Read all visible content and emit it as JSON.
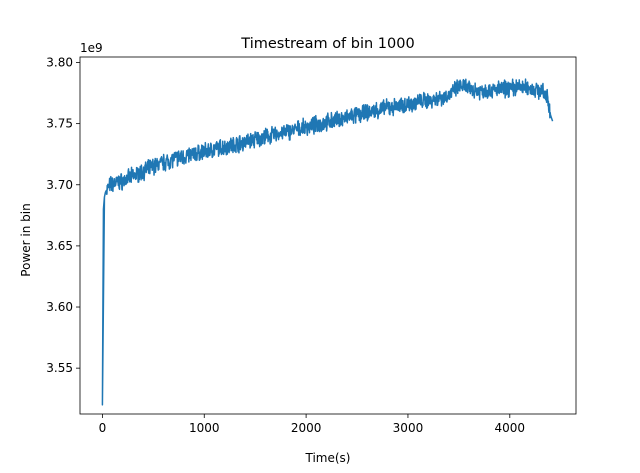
{
  "chart_data": {
    "type": "line",
    "title": "Timestream of bin 1000",
    "xlabel": "Time(s)",
    "ylabel": "Power in bin",
    "y_offset_label": "1e9",
    "xlim": [
      -220,
      4650
    ],
    "ylim": [
      3.5125,
      3.8045
    ],
    "x_ticks": [
      0,
      1000,
      2000,
      3000,
      4000
    ],
    "x_tick_labels": [
      "0",
      "1000",
      "2000",
      "3000",
      "4000"
    ],
    "y_ticks": [
      3.55,
      3.6,
      3.65,
      3.7,
      3.75,
      3.8
    ],
    "y_tick_labels": [
      "3.55",
      "3.60",
      "3.65",
      "3.70",
      "3.75",
      "3.80"
    ],
    "grid": false,
    "line_color": "#1f77b4",
    "series": [
      {
        "x": [
          0,
          5,
          10,
          20,
          30,
          50,
          80,
          120,
          200,
          300,
          400,
          500,
          600,
          700,
          800,
          900,
          1000,
          1100,
          1200,
          1300,
          1400,
          1500,
          1600,
          1700,
          1800,
          1900,
          2000,
          2100,
          2200,
          2300,
          2400,
          2500,
          2600,
          2700,
          2800,
          2900,
          3000,
          3100,
          3200,
          3300,
          3400,
          3500,
          3550,
          3600,
          3700,
          3800,
          3900,
          4000,
          4100,
          4200,
          4300,
          4350,
          4380,
          4400,
          4420
        ],
        "y": [
          3.52,
          3.6,
          3.68,
          3.69,
          3.694,
          3.697,
          3.7,
          3.701,
          3.703,
          3.707,
          3.711,
          3.715,
          3.718,
          3.721,
          3.723,
          3.725,
          3.727,
          3.729,
          3.731,
          3.733,
          3.735,
          3.737,
          3.739,
          3.741,
          3.743,
          3.745,
          3.747,
          3.749,
          3.751,
          3.753,
          3.755,
          3.757,
          3.759,
          3.761,
          3.763,
          3.764,
          3.766,
          3.768,
          3.769,
          3.771,
          3.773,
          3.78,
          3.781,
          3.778,
          3.777,
          3.777,
          3.778,
          3.779,
          3.78,
          3.779,
          3.777,
          3.774,
          3.768,
          3.757,
          3.752
        ]
      }
    ]
  }
}
